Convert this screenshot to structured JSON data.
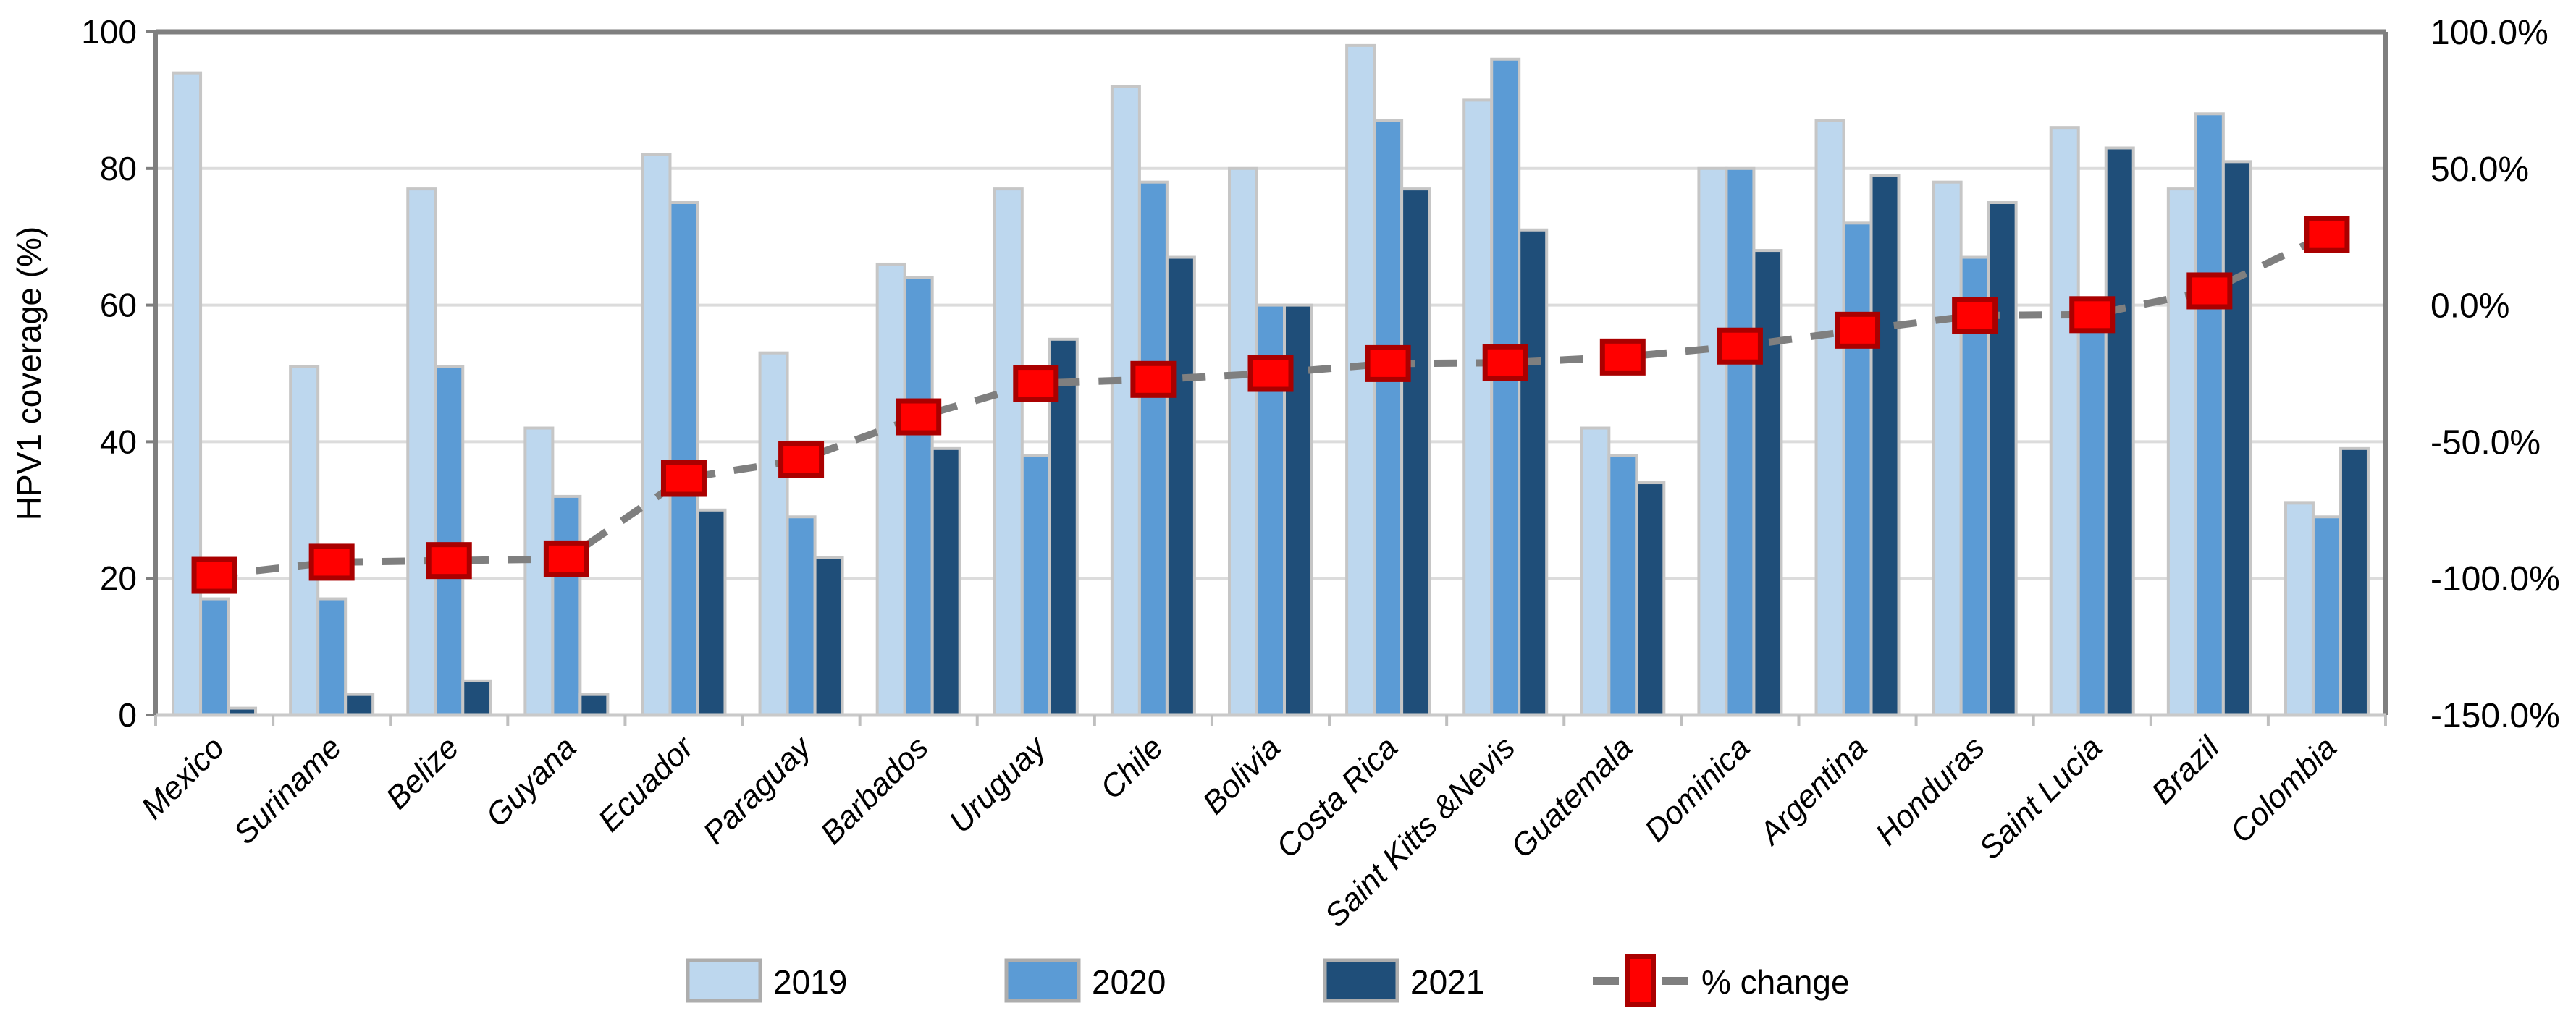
{
  "chart_data": {
    "type": "bar+line",
    "title": "",
    "ylabel": "HPV1 coverage (%)",
    "xlabel": "",
    "ylim": [
      0,
      100
    ],
    "yticks": [
      "0",
      "20",
      "40",
      "60",
      "80",
      "100"
    ],
    "y2lim": [
      -150,
      100
    ],
    "y2ticks": [
      {
        "label": "100.0%",
        "value": 100
      },
      {
        "label": "50.0%",
        "value": 50
      },
      {
        "label": "0.0%",
        "value": 0
      },
      {
        "label": "-50.0%",
        "value": -50
      },
      {
        "label": "-100.0%",
        "value": -100
      },
      {
        "label": "-150.0%",
        "value": -150
      }
    ],
    "grid": true,
    "legend_position": "bottom",
    "categories": [
      "Mexico",
      "Suriname",
      "Belize",
      "Guyana",
      "Ecuador",
      "Paraguay",
      "Barbados",
      "Uruguay",
      "Chile",
      "Bolivia",
      "Costa Rica",
      "Saint Kitts &Nevis",
      "Guatemala",
      "Dominica",
      "Argentina",
      "Honduras",
      "Saint Lucia",
      "Brazil",
      "Colombia"
    ],
    "series": [
      {
        "name": "2019",
        "color": "#BDD7EE",
        "values": [
          94,
          51,
          77,
          42,
          82,
          53,
          66,
          77,
          92,
          80,
          98,
          90,
          42,
          80,
          87,
          78,
          86,
          77,
          31
        ]
      },
      {
        "name": "2020",
        "color": "#5B9BD5",
        "values": [
          17,
          17,
          51,
          32,
          75,
          29,
          64,
          38,
          78,
          60,
          87,
          96,
          38,
          80,
          72,
          67,
          58,
          88,
          29
        ]
      },
      {
        "name": "2021",
        "color": "#1F4E79",
        "values": [
          1,
          3,
          5,
          3,
          30,
          23,
          39,
          55,
          67,
          60,
          77,
          71,
          34,
          68,
          79,
          75,
          83,
          81,
          39
        ]
      }
    ],
    "line_series": {
      "name": "% change",
      "axis": "right",
      "marker_color": "#FF0000",
      "marker_border": "#AA0000",
      "line_color": "#7F7F7F",
      "values": [
        -98.9,
        -94.1,
        -93.5,
        -92.9,
        -63.4,
        -56.6,
        -40.9,
        -28.6,
        -27.2,
        -25.0,
        -21.4,
        -21.1,
        -19.0,
        -15.0,
        -9.2,
        -3.8,
        -3.5,
        5.2,
        25.8
      ]
    },
    "legend_items": [
      "2019",
      "2020",
      "2021",
      "% change"
    ]
  },
  "style_colors": {
    "gridline": "#DCDCDC",
    "plot_border": "#7F7F7F",
    "bottom_axis": "#C9C9C9",
    "bar_border": "#C6C6C6",
    "x_tick": "#BFBFBF",
    "swatch_border": "#ADADAD"
  }
}
